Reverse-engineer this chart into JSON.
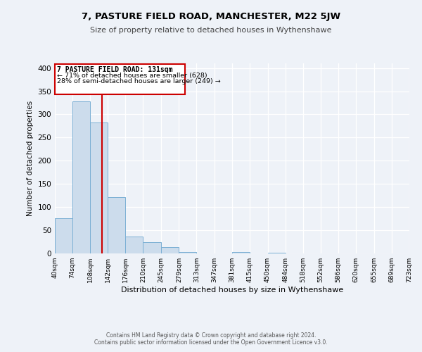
{
  "title": "7, PASTURE FIELD ROAD, MANCHESTER, M22 5JW",
  "subtitle": "Size of property relative to detached houses in Wythenshawe",
  "xlabel": "Distribution of detached houses by size in Wythenshawe",
  "ylabel": "Number of detached properties",
  "bar_color": "#ccdcec",
  "bar_edge_color": "#7aafd4",
  "background_color": "#eef2f8",
  "annotation_box_color": "#ffffff",
  "annotation_border_color": "#cc0000",
  "red_line_color": "#cc0000",
  "red_line_x": 131,
  "annotation_title": "7 PASTURE FIELD ROAD: 131sqm",
  "annotation_line1": "← 71% of detached houses are smaller (628)",
  "annotation_line2": "28% of semi-detached houses are larger (249) →",
  "footer_line1": "Contains HM Land Registry data © Crown copyright and database right 2024.",
  "footer_line2": "Contains public sector information licensed under the Open Government Licence v3.0.",
  "bin_edges": [
    40,
    74,
    108,
    142,
    176,
    210,
    245,
    279,
    313,
    347,
    381,
    415,
    450,
    484,
    518,
    552,
    586,
    620,
    655,
    689,
    723
  ],
  "bin_labels": [
    "40sqm",
    "74sqm",
    "108sqm",
    "142sqm",
    "176sqm",
    "210sqm",
    "245sqm",
    "279sqm",
    "313sqm",
    "347sqm",
    "381sqm",
    "415sqm",
    "450sqm",
    "484sqm",
    "518sqm",
    "552sqm",
    "586sqm",
    "620sqm",
    "655sqm",
    "689sqm",
    "723sqm"
  ],
  "counts": [
    76,
    328,
    283,
    122,
    37,
    24,
    13,
    3,
    0,
    0,
    3,
    0,
    2,
    0,
    0,
    0,
    0,
    0,
    0,
    0
  ],
  "ylim": [
    0,
    410
  ],
  "yticks": [
    0,
    50,
    100,
    150,
    200,
    250,
    300,
    350,
    400
  ]
}
